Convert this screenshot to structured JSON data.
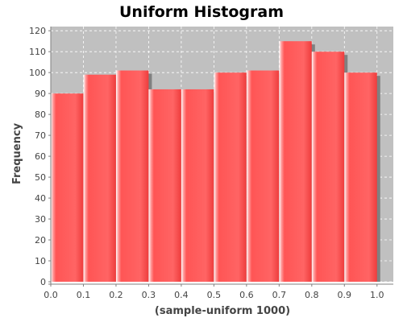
{
  "chart_data": {
    "type": "bar",
    "title": "Uniform Histogram",
    "xlabel": "(sample-uniform 1000)",
    "ylabel": "Frequency",
    "bins": [
      {
        "start": 0.0,
        "end": 0.1,
        "value": 90
      },
      {
        "start": 0.1,
        "end": 0.2,
        "value": 99
      },
      {
        "start": 0.2,
        "end": 0.3,
        "value": 101
      },
      {
        "start": 0.3,
        "end": 0.4,
        "value": 92
      },
      {
        "start": 0.4,
        "end": 0.5,
        "value": 92
      },
      {
        "start": 0.5,
        "end": 0.6,
        "value": 100
      },
      {
        "start": 0.6,
        "end": 0.7,
        "value": 101
      },
      {
        "start": 0.7,
        "end": 0.8,
        "value": 115
      },
      {
        "start": 0.8,
        "end": 0.9,
        "value": 110
      },
      {
        "start": 0.9,
        "end": 1.0,
        "value": 100
      }
    ],
    "xlim": [
      0.0,
      1.05
    ],
    "ylim": [
      0,
      122
    ],
    "xticks": [
      "0.0",
      "0.1",
      "0.2",
      "0.3",
      "0.4",
      "0.5",
      "0.6",
      "0.7",
      "0.8",
      "0.9",
      "1.0"
    ],
    "yticks": [
      "0",
      "10",
      "20",
      "30",
      "40",
      "50",
      "60",
      "70",
      "80",
      "90",
      "100",
      "110",
      "120"
    ],
    "grid": true,
    "legend": "none",
    "colors": {
      "bar": "#ff5555",
      "bar_dark": "#ee3c3c",
      "bar_highlight": "#ffd9d9",
      "shadow": "#808080",
      "plot_background": "#c0c0c0",
      "gridline": "#ffffff",
      "axis": "#808080"
    }
  }
}
